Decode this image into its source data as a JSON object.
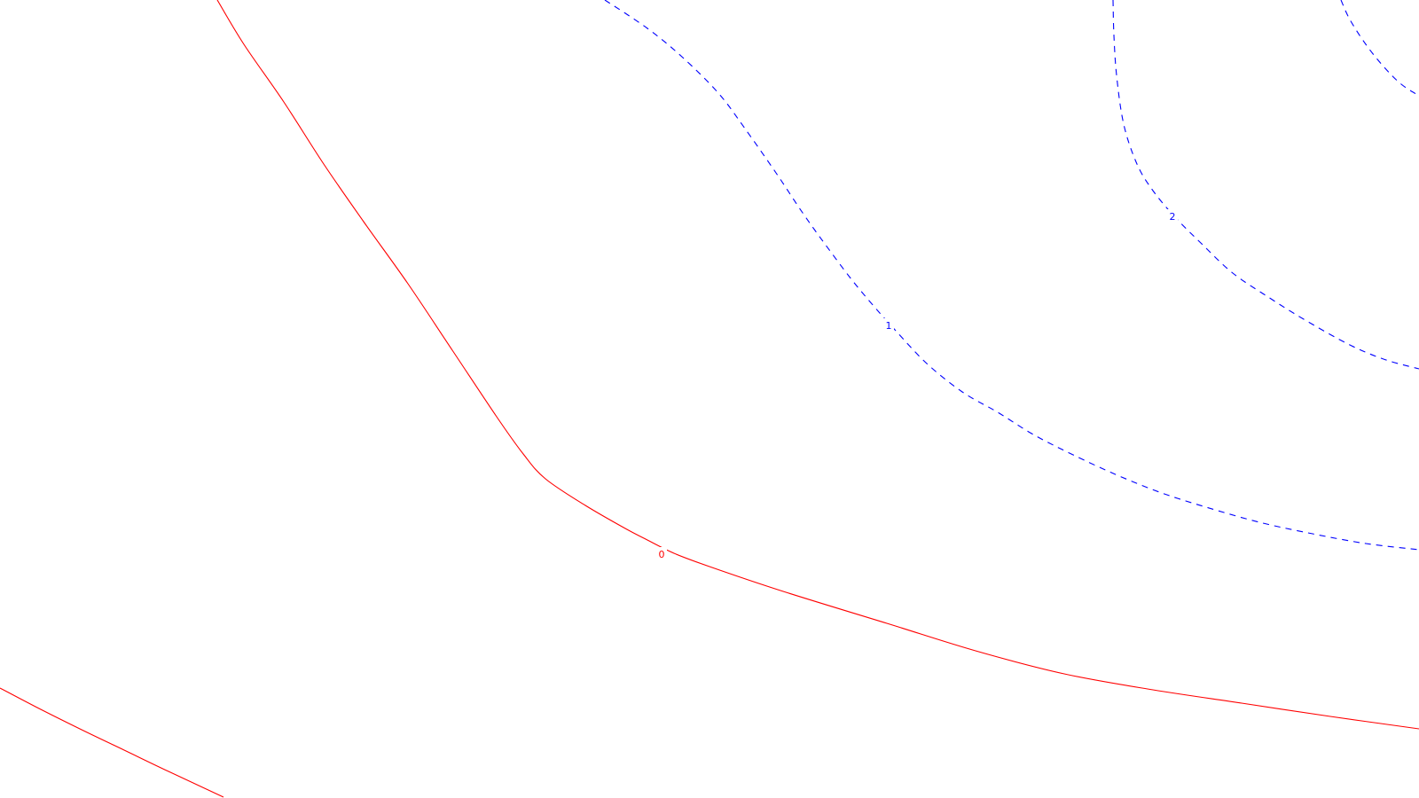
{
  "chart_data": {
    "type": "contour",
    "title": "",
    "xlabel": "",
    "ylabel": "",
    "grid": false,
    "legend": "none",
    "contours": [
      {
        "level": "0",
        "color": "#ff0000",
        "style": "solid",
        "segments": [
          [
            [
              245,
              0
            ],
            [
              275,
              50
            ],
            [
              320,
              115
            ],
            [
              365,
              185
            ],
            [
              410,
              250
            ],
            [
              460,
              320
            ],
            [
              510,
              395
            ],
            [
              560,
              470
            ],
            [
              590,
              512
            ],
            [
              615,
              540
            ],
            [
              660,
              570
            ],
            [
              705,
              596
            ],
            [
              728,
              608
            ],
            [
              760,
              624
            ],
            [
              800,
              639
            ],
            [
              880,
              666
            ],
            [
              1000,
              703
            ],
            [
              1100,
              734
            ],
            [
              1200,
              760
            ],
            [
              1300,
              778
            ],
            [
              1400,
              793
            ],
            [
              1500,
              808
            ],
            [
              1600,
              822
            ]
          ],
          [
            [
              0,
              776
            ],
            [
              40,
              797
            ],
            [
              90,
              822
            ],
            [
              140,
              846
            ],
            [
              190,
              870
            ],
            [
              252,
              899
            ]
          ]
        ],
        "label_at": [
          746,
          625
        ]
      },
      {
        "level": "1",
        "color": "#0000ff",
        "style": "dashed",
        "segments": [
          [
            [
              682,
              0
            ],
            [
              730,
              32
            ],
            [
              770,
              65
            ],
            [
              810,
              105
            ],
            [
              840,
              145
            ],
            [
              875,
              195
            ],
            [
              905,
              240
            ],
            [
              930,
              275
            ],
            [
              960,
              315
            ],
            [
              985,
              345
            ],
            [
              1010,
              373
            ],
            [
              1045,
              410
            ],
            [
              1085,
              442
            ],
            [
              1125,
              465
            ],
            [
              1165,
              490
            ],
            [
              1210,
              513
            ],
            [
              1260,
              536
            ],
            [
              1310,
              556
            ],
            [
              1360,
              572
            ],
            [
              1420,
              589
            ],
            [
              1480,
              602
            ],
            [
              1540,
              613
            ],
            [
              1600,
              620
            ]
          ]
        ],
        "label_at": [
          1002,
          367
        ]
      },
      {
        "level": "2",
        "color": "#0000ff",
        "style": "dashed",
        "segments": [
          [
            [
              1255,
              0
            ],
            [
              1256,
              40
            ],
            [
              1259,
              85
            ],
            [
              1267,
              140
            ],
            [
              1282,
              185
            ],
            [
              1300,
              215
            ],
            [
              1325,
              245
            ],
            [
              1355,
              275
            ],
            [
              1390,
              308
            ],
            [
              1430,
              335
            ],
            [
              1470,
              360
            ],
            [
              1520,
              388
            ],
            [
              1560,
              405
            ],
            [
              1600,
              416
            ]
          ]
        ],
        "label_at": [
          1322,
          244
        ]
      },
      {
        "level": "",
        "color": "#0000ff",
        "style": "dashed",
        "segments": [
          [
            [
              1512,
              0
            ],
            [
              1522,
              22
            ],
            [
              1540,
              50
            ],
            [
              1560,
              75
            ],
            [
              1580,
              95
            ],
            [
              1600,
              108
            ]
          ]
        ],
        "label_at": null
      }
    ]
  }
}
